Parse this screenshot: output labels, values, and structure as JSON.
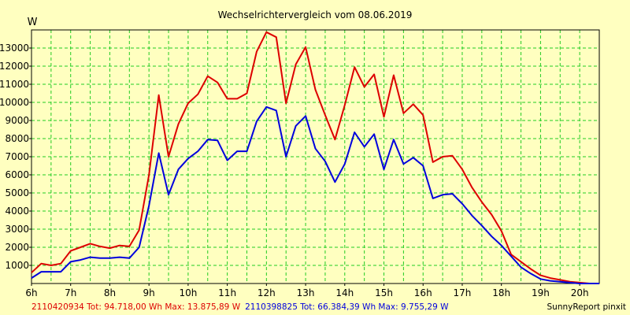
{
  "chart_data": {
    "type": "line",
    "title": "Wechselrichtervergleich vom 08.06.2019",
    "ylabel": "W",
    "xlim": [
      6,
      20.5
    ],
    "ylim": [
      0,
      14000
    ],
    "grid": true,
    "yticks": [
      1000,
      2000,
      3000,
      4000,
      5000,
      6000,
      7000,
      8000,
      9000,
      10000,
      11000,
      12000,
      13000
    ],
    "xticks": [
      {
        "v": 6,
        "label": "6h"
      },
      {
        "v": 7,
        "label": "7h"
      },
      {
        "v": 8,
        "label": "8h"
      },
      {
        "v": 9,
        "label": "9h"
      },
      {
        "v": 10,
        "label": "10h"
      },
      {
        "v": 11,
        "label": "11h"
      },
      {
        "v": 12,
        "label": "12h"
      },
      {
        "v": 13,
        "label": "13h"
      },
      {
        "v": 14,
        "label": "14h"
      },
      {
        "v": 15,
        "label": "15h"
      },
      {
        "v": 16,
        "label": "16h"
      },
      {
        "v": 17,
        "label": "17h"
      },
      {
        "v": 18,
        "label": "18h"
      },
      {
        "v": 19,
        "label": "19h"
      },
      {
        "v": 20,
        "label": "20h"
      }
    ],
    "series": [
      {
        "name": "2110420934",
        "color": "#dd0000",
        "x": [
          6.0,
          6.25,
          6.5,
          6.75,
          7.0,
          7.25,
          7.5,
          7.75,
          8.0,
          8.25,
          8.5,
          8.75,
          9.0,
          9.25,
          9.5,
          9.75,
          10.0,
          10.25,
          10.5,
          10.75,
          11.0,
          11.25,
          11.5,
          11.75,
          12.0,
          12.25,
          12.5,
          12.75,
          13.0,
          13.25,
          13.5,
          13.75,
          14.0,
          14.25,
          14.5,
          14.75,
          15.0,
          15.25,
          15.5,
          15.75,
          16.0,
          16.25,
          16.5,
          16.75,
          17.0,
          17.25,
          17.5,
          17.75,
          18.0,
          18.25,
          18.5,
          18.75,
          19.0,
          19.25,
          19.5,
          19.75,
          20.0,
          20.25,
          20.5
        ],
        "y": [
          600,
          1100,
          1000,
          1100,
          1800,
          2000,
          2200,
          2050,
          1950,
          2100,
          2050,
          2950,
          6000,
          10400,
          7000,
          8800,
          9950,
          10450,
          11450,
          11100,
          10200,
          10200,
          10500,
          12800,
          13880,
          13600,
          9950,
          12100,
          13050,
          10700,
          9300,
          7950,
          9850,
          11950,
          10850,
          11550,
          9200,
          11500,
          9400,
          9900,
          9300,
          6700,
          7000,
          7050,
          6300,
          5300,
          4500,
          3800,
          2900,
          1600,
          1200,
          800,
          450,
          300,
          200,
          100,
          50,
          0,
          0
        ]
      },
      {
        "name": "2110398825",
        "color": "#0000dd",
        "x": [
          6.0,
          6.25,
          6.5,
          6.75,
          7.0,
          7.25,
          7.5,
          7.75,
          8.0,
          8.25,
          8.5,
          8.75,
          9.0,
          9.25,
          9.5,
          9.75,
          10.0,
          10.25,
          10.5,
          10.75,
          11.0,
          11.25,
          11.5,
          11.75,
          12.0,
          12.25,
          12.5,
          12.75,
          13.0,
          13.25,
          13.5,
          13.75,
          14.0,
          14.25,
          14.5,
          14.75,
          15.0,
          15.25,
          15.5,
          15.75,
          16.0,
          16.25,
          16.5,
          16.75,
          17.0,
          17.25,
          17.5,
          17.75,
          18.0,
          18.25,
          18.5,
          18.75,
          19.0,
          19.25,
          19.5,
          19.75,
          20.0,
          20.25,
          20.5
        ],
        "y": [
          300,
          650,
          650,
          650,
          1200,
          1300,
          1450,
          1400,
          1400,
          1450,
          1400,
          2000,
          4300,
          7200,
          4900,
          6300,
          6900,
          7300,
          7950,
          7900,
          6800,
          7300,
          7300,
          8950,
          9750,
          9550,
          7000,
          8700,
          9250,
          7450,
          6750,
          5600,
          6600,
          8350,
          7550,
          8250,
          6300,
          7950,
          6600,
          6950,
          6500,
          4700,
          4900,
          4950,
          4400,
          3750,
          3200,
          2600,
          2100,
          1500,
          900,
          550,
          250,
          150,
          100,
          50,
          0,
          0,
          0
        ]
      }
    ],
    "footer": [
      {
        "text": "2110420934 Tot: 94.718,00 Wh Max: 13.875,89 W",
        "color": "#dd0000"
      },
      {
        "text": "2110398825 Tot: 66.384,39 Wh Max: 9.755,29 W",
        "color": "#0000dd"
      }
    ],
    "credit": "SunnyReport pinxit"
  }
}
